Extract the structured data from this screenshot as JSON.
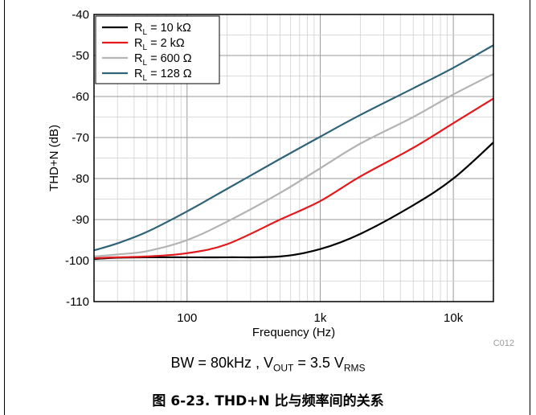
{
  "chart_data": {
    "type": "line",
    "xlabel": "Frequency (Hz)",
    "ylabel": "THD+N (dB)",
    "xscale": "log",
    "xlim": [
      20,
      20000
    ],
    "ylim": [
      -110,
      -40
    ],
    "x_ticks": [
      100,
      1000,
      10000
    ],
    "x_tick_labels": [
      "100",
      "1k",
      "10k"
    ],
    "y_ticks": [
      -40,
      -50,
      -60,
      -70,
      -80,
      -90,
      -100,
      -110
    ],
    "y_tick_labels": [
      "-40",
      "-50",
      "-60",
      "-70",
      "-80",
      "-90",
      "-100",
      "-110"
    ],
    "grid": true,
    "legend_position": "top-left",
    "figure_code": "C012",
    "x": [
      20,
      30,
      50,
      100,
      200,
      500,
      1000,
      2000,
      5000,
      10000,
      20000
    ],
    "series": [
      {
        "name_main": "R",
        "name_sub": "L",
        "name_rest": " = 10 kΩ",
        "color": "#000000",
        "values": [
          -99.6,
          -99.3,
          -99.2,
          -99.2,
          -99.2,
          -99.0,
          -97.2,
          -93.5,
          -86.5,
          -80.0,
          -71.2
        ]
      },
      {
        "name_main": "R",
        "name_sub": "L",
        "name_rest": " = 2 kΩ",
        "color": "#e3191b",
        "values": [
          -99.4,
          -99.2,
          -99.0,
          -98.2,
          -96.0,
          -90.0,
          -85.5,
          -79.5,
          -72.5,
          -66.5,
          -60.5
        ]
      },
      {
        "name_main": "R",
        "name_sub": "L",
        "name_rest": " = 600 Ω",
        "color": "#b3b3b3",
        "values": [
          -99.0,
          -98.5,
          -97.7,
          -95.0,
          -90.5,
          -83.5,
          -77.5,
          -71.5,
          -65.0,
          -59.5,
          -54.5
        ]
      },
      {
        "name_main": "R",
        "name_sub": "L",
        "name_rest": " = 128 Ω",
        "color": "#2e6378",
        "values": [
          -97.5,
          -95.8,
          -93.0,
          -88.0,
          -82.5,
          -75.2,
          -69.8,
          -64.5,
          -58.0,
          -53.0,
          -47.5
        ]
      }
    ]
  },
  "caption": {
    "prefix": "BW = 80kHz , V",
    "sub1": "OUT",
    "mid": " = 3.5 V",
    "sub2": "RMS"
  },
  "figure_title": "图 6-23. THD+N 比与频率间的关系"
}
